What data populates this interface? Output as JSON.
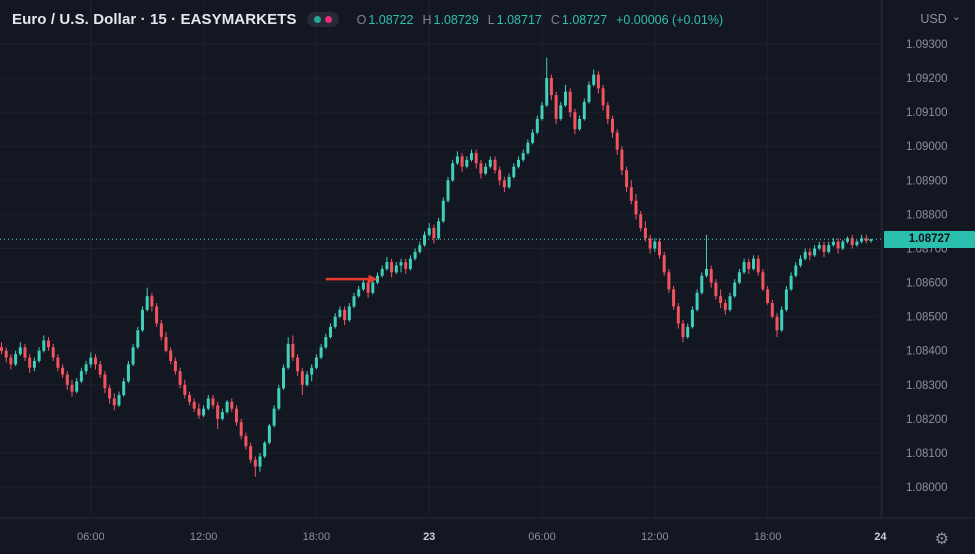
{
  "header": {
    "symbol_title": "Euro / U.S. Dollar · 15 · EASYMARKETS",
    "ohlc": {
      "o_label": "O",
      "o": "1.08722",
      "h_label": "H",
      "h": "1.08729",
      "l_label": "L",
      "l": "1.08717",
      "c_label": "C",
      "c": "1.08727",
      "change": "+0.00006 (+0.01%)"
    },
    "currency": "USD"
  },
  "icons": {
    "chevron_down": "⌄",
    "gear": "⚙"
  },
  "colors": {
    "background": "#131722",
    "up": "#3fcfba",
    "down": "#f2545f",
    "grid": "#1c212b",
    "border": "#2a2e39",
    "axis_text": "#8b9099",
    "axis_text_strong": "#c9ced8",
    "arrow": "#e83a30",
    "badge_bg": "#2bbfae",
    "badge_text": "#0c1117",
    "value_green": "#2fbfae",
    "green_dot": "#26a69a",
    "magenta_dot": "#ea2f79"
  },
  "chart_data": {
    "type": "candlestick",
    "title": "Euro / U.S. Dollar",
    "timeframe": "15",
    "exchange": "EASYMARKETS",
    "price_base": 1.08,
    "pip_unit": 0.0001,
    "note": "candles are [open,high,low,close] in pip units above price_base; price = price_base + v*pip_unit",
    "last_price": "1.08727",
    "y_ticks": [
      "1.09300",
      "1.09200",
      "1.09100",
      "1.09000",
      "1.08900",
      "1.08800",
      "1.08700",
      "1.08600",
      "1.08500",
      "1.08400",
      "1.08300",
      "1.08200",
      "1.08100",
      "1.08000"
    ],
    "x_ticks": [
      {
        "label": "06:00",
        "index": 19
      },
      {
        "label": "12:00",
        "index": 43
      },
      {
        "label": "18:00",
        "index": 67
      },
      {
        "label": "23",
        "index": 91
      },
      {
        "label": "06:00",
        "index": 115
      },
      {
        "label": "12:00",
        "index": 139
      },
      {
        "label": "18:00",
        "index": 163
      },
      {
        "label": "24",
        "index": 187
      }
    ],
    "arrow": {
      "price": 1.0861,
      "from_index": 69,
      "to_index": 80,
      "direction": "right"
    },
    "candles": [
      [
        41,
        42.5,
        39,
        40
      ],
      [
        40,
        41,
        36.5,
        38
      ],
      [
        38,
        39,
        34.5,
        36
      ],
      [
        36,
        40,
        35.5,
        39
      ],
      [
        39,
        42.5,
        38.5,
        41
      ],
      [
        41,
        42,
        37,
        38
      ],
      [
        38,
        39,
        33.5,
        35
      ],
      [
        35,
        38,
        34,
        37
      ],
      [
        37,
        41,
        36.5,
        40
      ],
      [
        40,
        44.5,
        39.5,
        43
      ],
      [
        43,
        44,
        40,
        41
      ],
      [
        41,
        42,
        37,
        38
      ],
      [
        38,
        39,
        34,
        35
      ],
      [
        35,
        36,
        32,
        33
      ],
      [
        33,
        34,
        28.5,
        30
      ],
      [
        30,
        31.5,
        26.5,
        28
      ],
      [
        28,
        32,
        27.5,
        31
      ],
      [
        31,
        35,
        30.5,
        34
      ],
      [
        34,
        37,
        33,
        36
      ],
      [
        36,
        39.5,
        35,
        38
      ],
      [
        38,
        39,
        34.5,
        36
      ],
      [
        36,
        37,
        32,
        33
      ],
      [
        33,
        34,
        27.5,
        29
      ],
      [
        29,
        30,
        24.5,
        26
      ],
      [
        26,
        27.5,
        22.5,
        24
      ],
      [
        24,
        28,
        23.5,
        27
      ],
      [
        27,
        32,
        26.5,
        31
      ],
      [
        31,
        37,
        30.5,
        36
      ],
      [
        36,
        42,
        35.5,
        41
      ],
      [
        41,
        47,
        40.5,
        46
      ],
      [
        46,
        53,
        45.5,
        52
      ],
      [
        52,
        58.5,
        51.5,
        56
      ],
      [
        56,
        57,
        51.5,
        53
      ],
      [
        53,
        54,
        47,
        48
      ],
      [
        48,
        49,
        43,
        44
      ],
      [
        44,
        45.5,
        39.5,
        40
      ],
      [
        40,
        41,
        36,
        37
      ],
      [
        37,
        38,
        33,
        34
      ],
      [
        34,
        35,
        29,
        30
      ],
      [
        30,
        31.5,
        26,
        27
      ],
      [
        27,
        28,
        24,
        25
      ],
      [
        25,
        26,
        22,
        23
      ],
      [
        23,
        24.5,
        20,
        21
      ],
      [
        21,
        24,
        20.5,
        23
      ],
      [
        23,
        27,
        22.5,
        26
      ],
      [
        26,
        27,
        23,
        24
      ],
      [
        24,
        25,
        17,
        20
      ],
      [
        20,
        23,
        19.5,
        22
      ],
      [
        22,
        25.5,
        21.5,
        25
      ],
      [
        25,
        26,
        22,
        23
      ],
      [
        23,
        24,
        18,
        19
      ],
      [
        19,
        20,
        14,
        15
      ],
      [
        15,
        16,
        11,
        12
      ],
      [
        12,
        13,
        7,
        8
      ],
      [
        8,
        9,
        3,
        6
      ],
      [
        6,
        10,
        4.5,
        9
      ],
      [
        9,
        13.5,
        8.5,
        13
      ],
      [
        13,
        18.5,
        12.5,
        18
      ],
      [
        18,
        24,
        17.5,
        23
      ],
      [
        23,
        30,
        22.5,
        29
      ],
      [
        29,
        36,
        28.5,
        35
      ],
      [
        35,
        44,
        34.5,
        42
      ],
      [
        42,
        44.5,
        37,
        38
      ],
      [
        38,
        39,
        32.5,
        34
      ],
      [
        34,
        35,
        27,
        30
      ],
      [
        30,
        34,
        29.5,
        33
      ],
      [
        33,
        36,
        31,
        35
      ],
      [
        35,
        39,
        34.5,
        38
      ],
      [
        38,
        42,
        37.5,
        41
      ],
      [
        41,
        45,
        40.5,
        44
      ],
      [
        44,
        48,
        43.5,
        47
      ],
      [
        47,
        51,
        46.5,
        50
      ],
      [
        50,
        53,
        49.5,
        52
      ],
      [
        52,
        53,
        47.5,
        49
      ],
      [
        49,
        54,
        48.5,
        53
      ],
      [
        53,
        57,
        52.5,
        56
      ],
      [
        56,
        59,
        55.5,
        58
      ],
      [
        58,
        61,
        57.5,
        60
      ],
      [
        60,
        61,
        55.5,
        57
      ],
      [
        57,
        61,
        56.5,
        60
      ],
      [
        60,
        63,
        59.5,
        62
      ],
      [
        62,
        65,
        61.5,
        64
      ],
      [
        64,
        67.5,
        63.5,
        66
      ],
      [
        66,
        67,
        61.5,
        63
      ],
      [
        63,
        66,
        62.5,
        65
      ],
      [
        65,
        67,
        63,
        66
      ],
      [
        66,
        67,
        62.5,
        64
      ],
      [
        64,
        68,
        63.5,
        67
      ],
      [
        67,
        70,
        66.5,
        69
      ],
      [
        69,
        72,
        68.5,
        71
      ],
      [
        71,
        75,
        70.5,
        74
      ],
      [
        74,
        77.5,
        73.5,
        76
      ],
      [
        76,
        77,
        71.5,
        73
      ],
      [
        73,
        79,
        72.5,
        78
      ],
      [
        78,
        85,
        77.5,
        84
      ],
      [
        84,
        91,
        83.5,
        90
      ],
      [
        90,
        96,
        89.5,
        95
      ],
      [
        95,
        98.5,
        94.5,
        97
      ],
      [
        97,
        98,
        92.5,
        94
      ],
      [
        94,
        97,
        93.5,
        96
      ],
      [
        96,
        99,
        95.5,
        98
      ],
      [
        98,
        99,
        93.5,
        95
      ],
      [
        95,
        96,
        90.5,
        92
      ],
      [
        92,
        95,
        91.5,
        94
      ],
      [
        94,
        97,
        93.5,
        96
      ],
      [
        96,
        97,
        92,
        93
      ],
      [
        93,
        94,
        88.5,
        90
      ],
      [
        90,
        91,
        86.5,
        88
      ],
      [
        88,
        92,
        87.5,
        91
      ],
      [
        91,
        95,
        90.5,
        94
      ],
      [
        94,
        97,
        93.5,
        96
      ],
      [
        96,
        99,
        95.5,
        98
      ],
      [
        98,
        102,
        97.5,
        101
      ],
      [
        101,
        105,
        100.5,
        104
      ],
      [
        104,
        109,
        103.5,
        108
      ],
      [
        108,
        113,
        107.5,
        112
      ],
      [
        112,
        126,
        111.5,
        120
      ],
      [
        120,
        121,
        113.5,
        115
      ],
      [
        115,
        116,
        106.5,
        108
      ],
      [
        108,
        113,
        107.5,
        112
      ],
      [
        112,
        118,
        111.5,
        116
      ],
      [
        116,
        117,
        108.5,
        110
      ],
      [
        110,
        111,
        103.5,
        105
      ],
      [
        105,
        109,
        104.5,
        108
      ],
      [
        108,
        114,
        107.5,
        113
      ],
      [
        113,
        119,
        112.5,
        118
      ],
      [
        118,
        122.5,
        117.5,
        121
      ],
      [
        121,
        122,
        115.5,
        117
      ],
      [
        117,
        118,
        110.5,
        112
      ],
      [
        112,
        113,
        106.5,
        108
      ],
      [
        108,
        109,
        102.5,
        104
      ],
      [
        104,
        105,
        97.5,
        99
      ],
      [
        99,
        100,
        91.5,
        93
      ],
      [
        93,
        94,
        86.5,
        88
      ],
      [
        88,
        90,
        83,
        84
      ],
      [
        84,
        86,
        78.5,
        80
      ],
      [
        80,
        81,
        75,
        76
      ],
      [
        76,
        78,
        72,
        73
      ],
      [
        73,
        74,
        68.5,
        70
      ],
      [
        70,
        73,
        69,
        72
      ],
      [
        72,
        73,
        67,
        68
      ],
      [
        68,
        69,
        62,
        63
      ],
      [
        63,
        64,
        57,
        58
      ],
      [
        58,
        59,
        52,
        53
      ],
      [
        53,
        54,
        46.5,
        48
      ],
      [
        48,
        49,
        42.5,
        44
      ],
      [
        44,
        48,
        43.5,
        47
      ],
      [
        47,
        53,
        46.5,
        52
      ],
      [
        52,
        58,
        51.5,
        57
      ],
      [
        57,
        63,
        56.5,
        62
      ],
      [
        62,
        74,
        61.5,
        64
      ],
      [
        64,
        65,
        58.5,
        60
      ],
      [
        60,
        61,
        55,
        56
      ],
      [
        56,
        58,
        52.5,
        54
      ],
      [
        54,
        55,
        50.5,
        52
      ],
      [
        52,
        57,
        51.5,
        56
      ],
      [
        56,
        61,
        55.5,
        60
      ],
      [
        60,
        64,
        59.5,
        63
      ],
      [
        63,
        67,
        62.5,
        66
      ],
      [
        66,
        67,
        62.5,
        64
      ],
      [
        64,
        68,
        63.5,
        67
      ],
      [
        67,
        68,
        62,
        63
      ],
      [
        63,
        64,
        57.5,
        58
      ],
      [
        58,
        59,
        53.5,
        54
      ],
      [
        54,
        55,
        49.5,
        50
      ],
      [
        50,
        51,
        44,
        46
      ],
      [
        46,
        53,
        45.5,
        52
      ],
      [
        52,
        59,
        51.5,
        58
      ],
      [
        58,
        63,
        57.5,
        62
      ],
      [
        62,
        66,
        61.5,
        65
      ],
      [
        65,
        68,
        64.5,
        67
      ],
      [
        67,
        70,
        66.5,
        69
      ],
      [
        69,
        70,
        66.5,
        68
      ],
      [
        68,
        71,
        67.5,
        70
      ],
      [
        70,
        72,
        69.5,
        71
      ],
      [
        71,
        72,
        67.5,
        69
      ],
      [
        69,
        72,
        68.5,
        71
      ],
      [
        71,
        73,
        70.5,
        72
      ],
      [
        72,
        73,
        68.5,
        70
      ],
      [
        70,
        72.5,
        69.5,
        72
      ],
      [
        72,
        73.5,
        71.5,
        73
      ],
      [
        73,
        74,
        70,
        71
      ],
      [
        71,
        72.5,
        70.5,
        72
      ],
      [
        72,
        74,
        71.5,
        73
      ],
      [
        73,
        74,
        71.5,
        72.2
      ],
      [
        72.2,
        72.9,
        71.7,
        72.7
      ]
    ]
  }
}
